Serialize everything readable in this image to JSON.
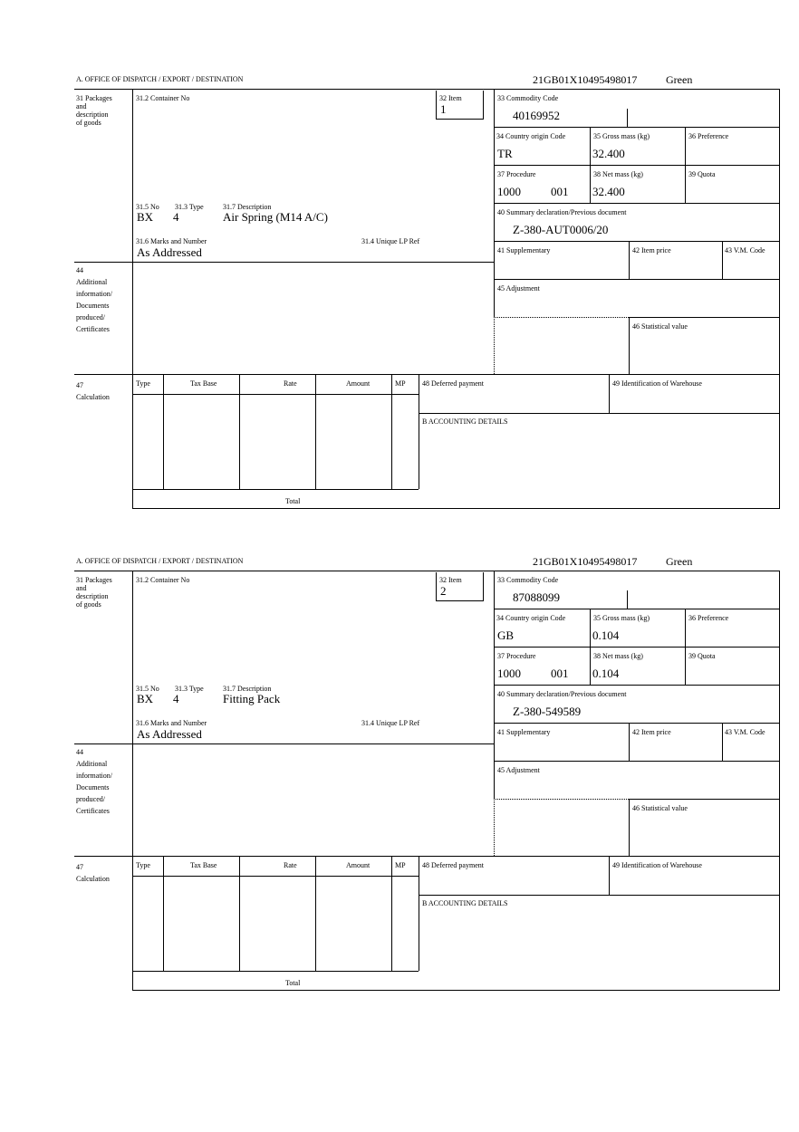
{
  "labels": {
    "office": "A.  OFFICE OF DISPATCH / EXPORT / DESTINATION",
    "packages": "31 Packages\nand\ndescription\nof goods",
    "container": "31.2 Container No",
    "item": "32 Item",
    "commodity": "33 Commodity Code",
    "country": "34 Country origin Code",
    "gross": "35 Gross mass (kg)",
    "preference": "36 Preference",
    "procedure": "37 Procedure",
    "net": "38 Net mass (kg)",
    "quota": "39 Quota",
    "summary": "40 Summary declaration/Previous document",
    "no": "31.5 No",
    "type": "31.3 Type",
    "description": "31.7 Description",
    "marks": "31.6 Marks and Number",
    "unique": "31.4 Unique LP Ref",
    "supplementary": "41 Supplementary",
    "item_price": "42 Item price",
    "vm_code": "43 V.M. Code",
    "additional": "44\nAdditional\ninformation/\nDocuments\nproduced/\nCertificates",
    "adjustment": "45 Adjustment",
    "statistical": "46 Statistical value",
    "calculation": "47\nCalculation",
    "calc_type": "Type",
    "tax_base": "Tax Base",
    "rate": "Rate",
    "amount": "Amount",
    "mp": "MP",
    "total": "Total",
    "deferred": "48 Deferred payment",
    "warehouse": "49 Identification of Warehouse",
    "accounting": "B ACCOUNTING DETAILS"
  },
  "forms": [
    {
      "reference": "21GB01X10495498017",
      "route": "Green",
      "item": "1",
      "commodity_code": "40169952",
      "country": "TR",
      "gross_mass": "32.400",
      "procedure": "1000",
      "procedure_add": "001",
      "net_mass": "32.400",
      "summary_doc": "Z-380-AUT0006/20",
      "pkg_no": "BX",
      "pkg_type": "4",
      "description": "Air Spring (M14 A/C)",
      "marks": "As Addressed"
    },
    {
      "reference": "21GB01X10495498017",
      "route": "Green",
      "item": "2",
      "commodity_code": "87088099",
      "country": "GB",
      "gross_mass": "0.104",
      "procedure": "1000",
      "procedure_add": "001",
      "net_mass": "0.104",
      "summary_doc": "Z-380-549589",
      "pkg_no": "BX",
      "pkg_type": "4",
      "description": "Fitting Pack",
      "marks": "As Addressed"
    }
  ]
}
